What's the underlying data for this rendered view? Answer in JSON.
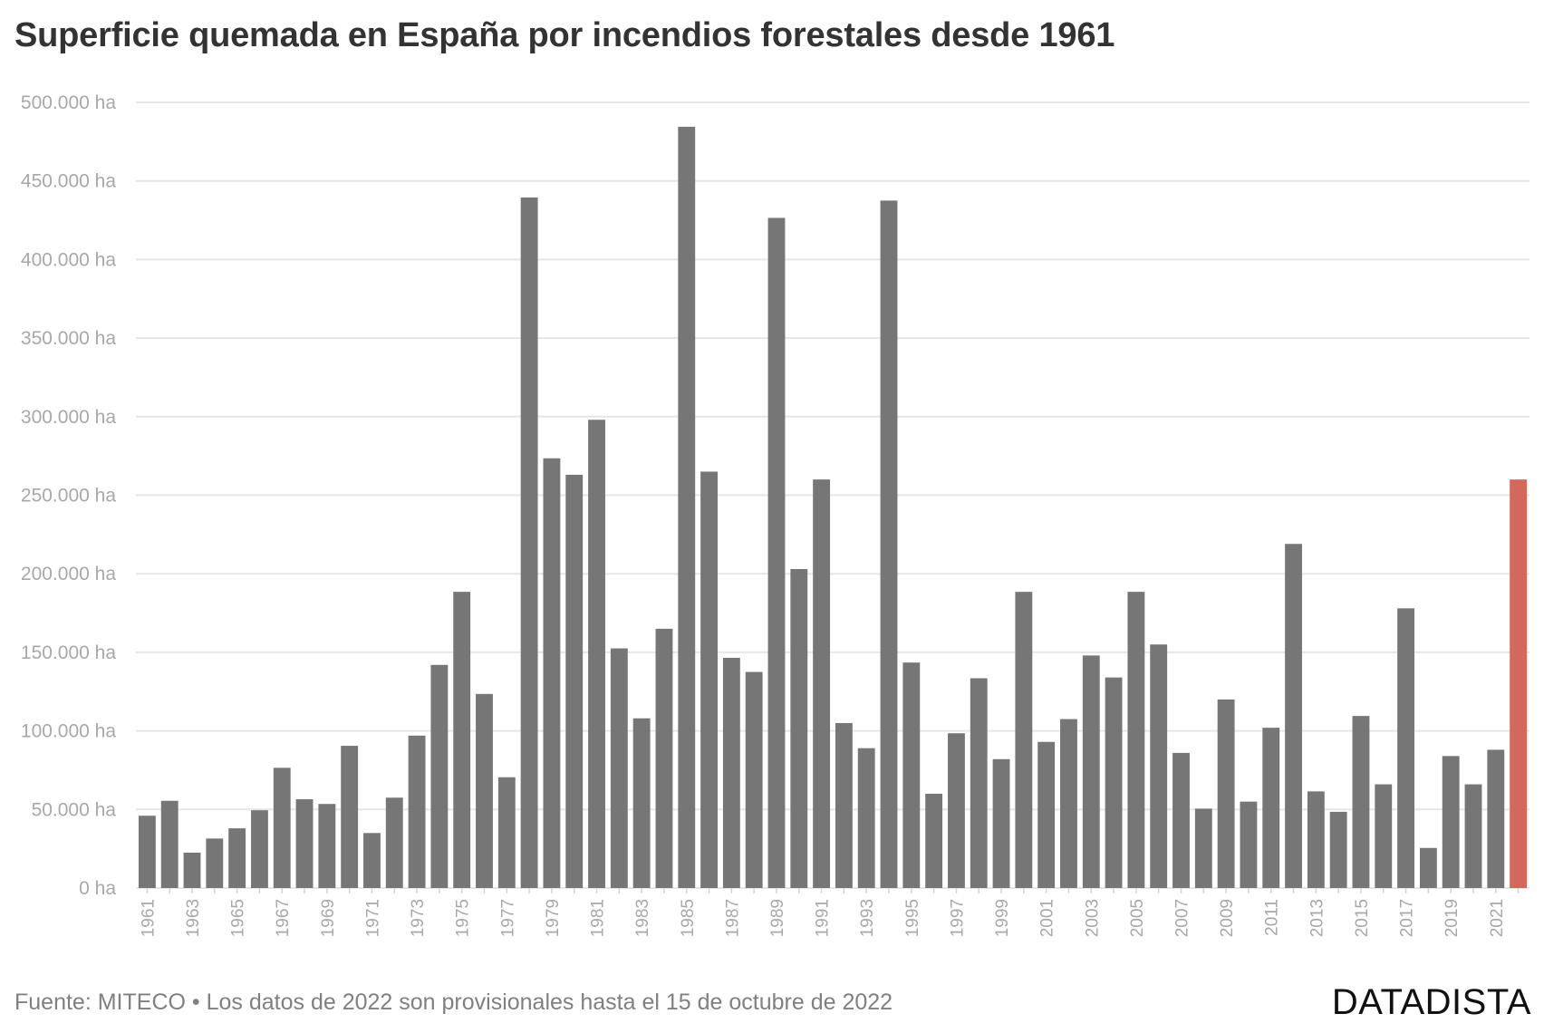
{
  "chart_data": {
    "type": "bar",
    "title": "Superficie quemada en España por incendios forestales desde 1961",
    "xlabel": "",
    "ylabel": "",
    "ylim": [
      0,
      500000
    ],
    "y_ticks": [
      0,
      50000,
      100000,
      150000,
      200000,
      250000,
      300000,
      350000,
      400000,
      450000,
      500000
    ],
    "y_tick_labels": [
      "0 ha",
      "50.000 ha",
      "100.000 ha",
      "150.000 ha",
      "200.000 ha",
      "250.000 ha",
      "300.000 ha",
      "350.000 ha",
      "400.000 ha",
      "450.000 ha",
      "500.000 ha"
    ],
    "categories": [
      "1961",
      "1962",
      "1963",
      "1964",
      "1965",
      "1966",
      "1967",
      "1968",
      "1969",
      "1970",
      "1971",
      "1972",
      "1973",
      "1974",
      "1975",
      "1976",
      "1977",
      "1978",
      "1979",
      "1980",
      "1981",
      "1982",
      "1983",
      "1984",
      "1985",
      "1986",
      "1987",
      "1988",
      "1989",
      "1990",
      "1991",
      "1992",
      "1993",
      "1994",
      "1995",
      "1996",
      "1997",
      "1998",
      "1999",
      "2000",
      "2001",
      "2002",
      "2003",
      "2004",
      "2005",
      "2006",
      "2007",
      "2008",
      "2009",
      "2010",
      "2011",
      "2012",
      "2013",
      "2014",
      "2015",
      "2016",
      "2017",
      "2018",
      "2019",
      "2020",
      "2021",
      "2022"
    ],
    "x_tick_labels": [
      "1961",
      "1963",
      "1965",
      "1967",
      "1969",
      "1971",
      "1973",
      "1975",
      "1977",
      "1979",
      "1981",
      "1983",
      "1985",
      "1987",
      "1989",
      "1991",
      "1993",
      "1995",
      "1997",
      "1999",
      "2001",
      "2003",
      "2005",
      "2007",
      "2009",
      "2011",
      "2013",
      "2015",
      "2017",
      "2019",
      "2021"
    ],
    "values": [
      46000,
      55500,
      22500,
      31500,
      38000,
      49500,
      76500,
      56500,
      53500,
      90500,
      35000,
      57500,
      97000,
      142000,
      188500,
      123500,
      70500,
      439500,
      273500,
      263000,
      298000,
      152500,
      108000,
      165000,
      484500,
      265000,
      146500,
      137500,
      426500,
      203000,
      260000,
      105000,
      89000,
      437500,
      143500,
      60000,
      98500,
      133500,
      82000,
      188500,
      93000,
      107500,
      148000,
      134000,
      188500,
      155000,
      86000,
      50500,
      120000,
      55000,
      102000,
      219000,
      61500,
      48500,
      109500,
      66000,
      178000,
      25500,
      84000,
      66000,
      88000,
      260000
    ],
    "colors": {
      "bar": "#767676",
      "highlight": "#d4685a",
      "grid": "#e6e6e6",
      "axis_text": "#a8a8a8"
    },
    "highlight_category": "2022"
  },
  "footer": {
    "source": "Fuente: MITECO • Los datos de 2022 son provisionales hasta el 15 de octubre de 2022",
    "logo": "DATADISTA"
  }
}
